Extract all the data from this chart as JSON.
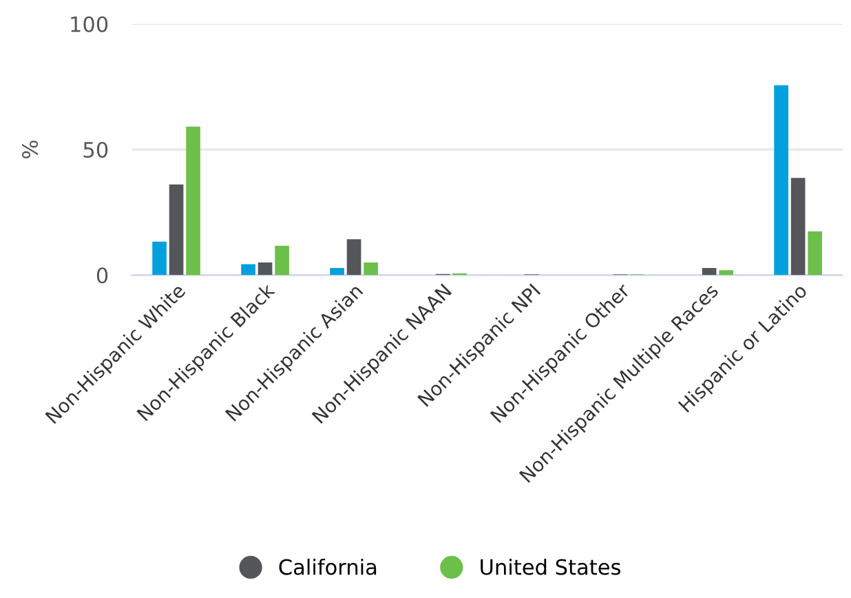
{
  "chart_data": {
    "type": "bar",
    "ylabel": "%",
    "categories": [
      "Non-Hispanic White",
      "Non-Hispanic Black",
      "Non-Hispanic Asian",
      "Non-Hispanic NAAN",
      "Non-Hispanic NPI",
      "Non-Hispanic Other",
      "Non-Hispanic Multiple Races",
      "Hispanic or Latino"
    ],
    "series": [
      {
        "color": "#00a0dc",
        "values": [
          13.3,
          4.3,
          2.8,
          null,
          null,
          null,
          null,
          75.6
        ]
      },
      {
        "name": "California",
        "color": "#54565a",
        "values": [
          36.1,
          5.0,
          14.3,
          0.4,
          0.3,
          0.3,
          2.8,
          38.7
        ]
      },
      {
        "name": "United States",
        "color": "#6cc04a",
        "values": [
          59.1,
          11.7,
          5.0,
          0.7,
          null,
          0.3,
          1.9,
          17.4
        ]
      }
    ],
    "ylim": [
      0,
      100
    ],
    "yticks": [
      0,
      50,
      100
    ],
    "grid": "y",
    "legend": "bottom"
  }
}
